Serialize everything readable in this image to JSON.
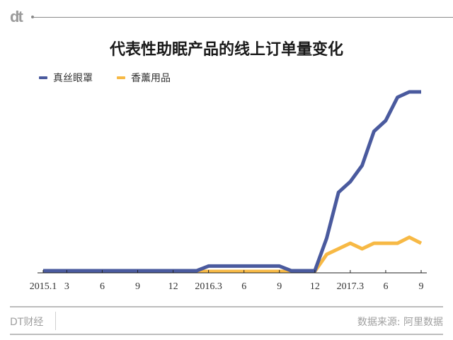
{
  "header": {
    "logo": "dt",
    "title": "代表性助眠产品的线上订单量变化"
  },
  "legend": [
    {
      "label": "真丝眼罩",
      "color": "#4a5a9e"
    },
    {
      "label": "香薰用品",
      "color": "#f7b945"
    }
  ],
  "footer": {
    "brand": "DT财经",
    "source": "数据来源: 阿里数据"
  },
  "chart_data": {
    "type": "line",
    "title": "代表性助眠产品的线上订单量变化",
    "xlabel": "",
    "ylabel": "",
    "x": [
      "2015.1",
      "2015.2",
      "2015.3",
      "2015.4",
      "2015.5",
      "2015.6",
      "2015.7",
      "2015.8",
      "2015.9",
      "2015.10",
      "2015.11",
      "2015.12",
      "2016.1",
      "2016.2",
      "2016.3",
      "2016.4",
      "2016.5",
      "2016.6",
      "2016.7",
      "2016.8",
      "2016.9",
      "2016.10",
      "2016.11",
      "2016.12",
      "2017.1",
      "2017.2",
      "2017.3",
      "2017.4",
      "2017.5",
      "2017.6",
      "2017.7",
      "2017.8",
      "2017.9"
    ],
    "tick_labels": [
      {
        "index": 0,
        "label": "2015.1"
      },
      {
        "index": 2,
        "label": "3"
      },
      {
        "index": 5,
        "label": "6"
      },
      {
        "index": 8,
        "label": "9"
      },
      {
        "index": 11,
        "label": "12"
      },
      {
        "index": 14,
        "label": "2016.3"
      },
      {
        "index": 17,
        "label": "6"
      },
      {
        "index": 20,
        "label": "9"
      },
      {
        "index": 23,
        "label": "12"
      },
      {
        "index": 26,
        "label": "2017.3"
      },
      {
        "index": 29,
        "label": "6"
      },
      {
        "index": 32,
        "label": "9"
      }
    ],
    "series": [
      {
        "name": "真丝眼罩",
        "color": "#4a5a9e",
        "values": [
          0.4,
          0.4,
          0.4,
          0.4,
          0.4,
          0.4,
          0.4,
          0.4,
          0.4,
          0.4,
          0.4,
          0.4,
          0.4,
          0.4,
          3,
          3,
          3,
          3,
          3,
          3,
          3,
          0.4,
          0.4,
          0.4,
          18.5,
          44,
          50,
          59,
          78,
          84,
          97,
          100,
          100
        ]
      },
      {
        "name": "香薰用品",
        "color": "#f7b945",
        "values": [
          0,
          0,
          0,
          0,
          0,
          0,
          0,
          0,
          0,
          0,
          0,
          0,
          0,
          0,
          0,
          0,
          0,
          0,
          0,
          0,
          0,
          0,
          0,
          0,
          9.5,
          12.6,
          15.7,
          12.6,
          15.7,
          15.7,
          15.7,
          19,
          15.7
        ]
      }
    ],
    "ylim": [
      0,
      100
    ],
    "y_axis_labels_shown": false,
    "grid": false,
    "legend_position": "top-left"
  }
}
